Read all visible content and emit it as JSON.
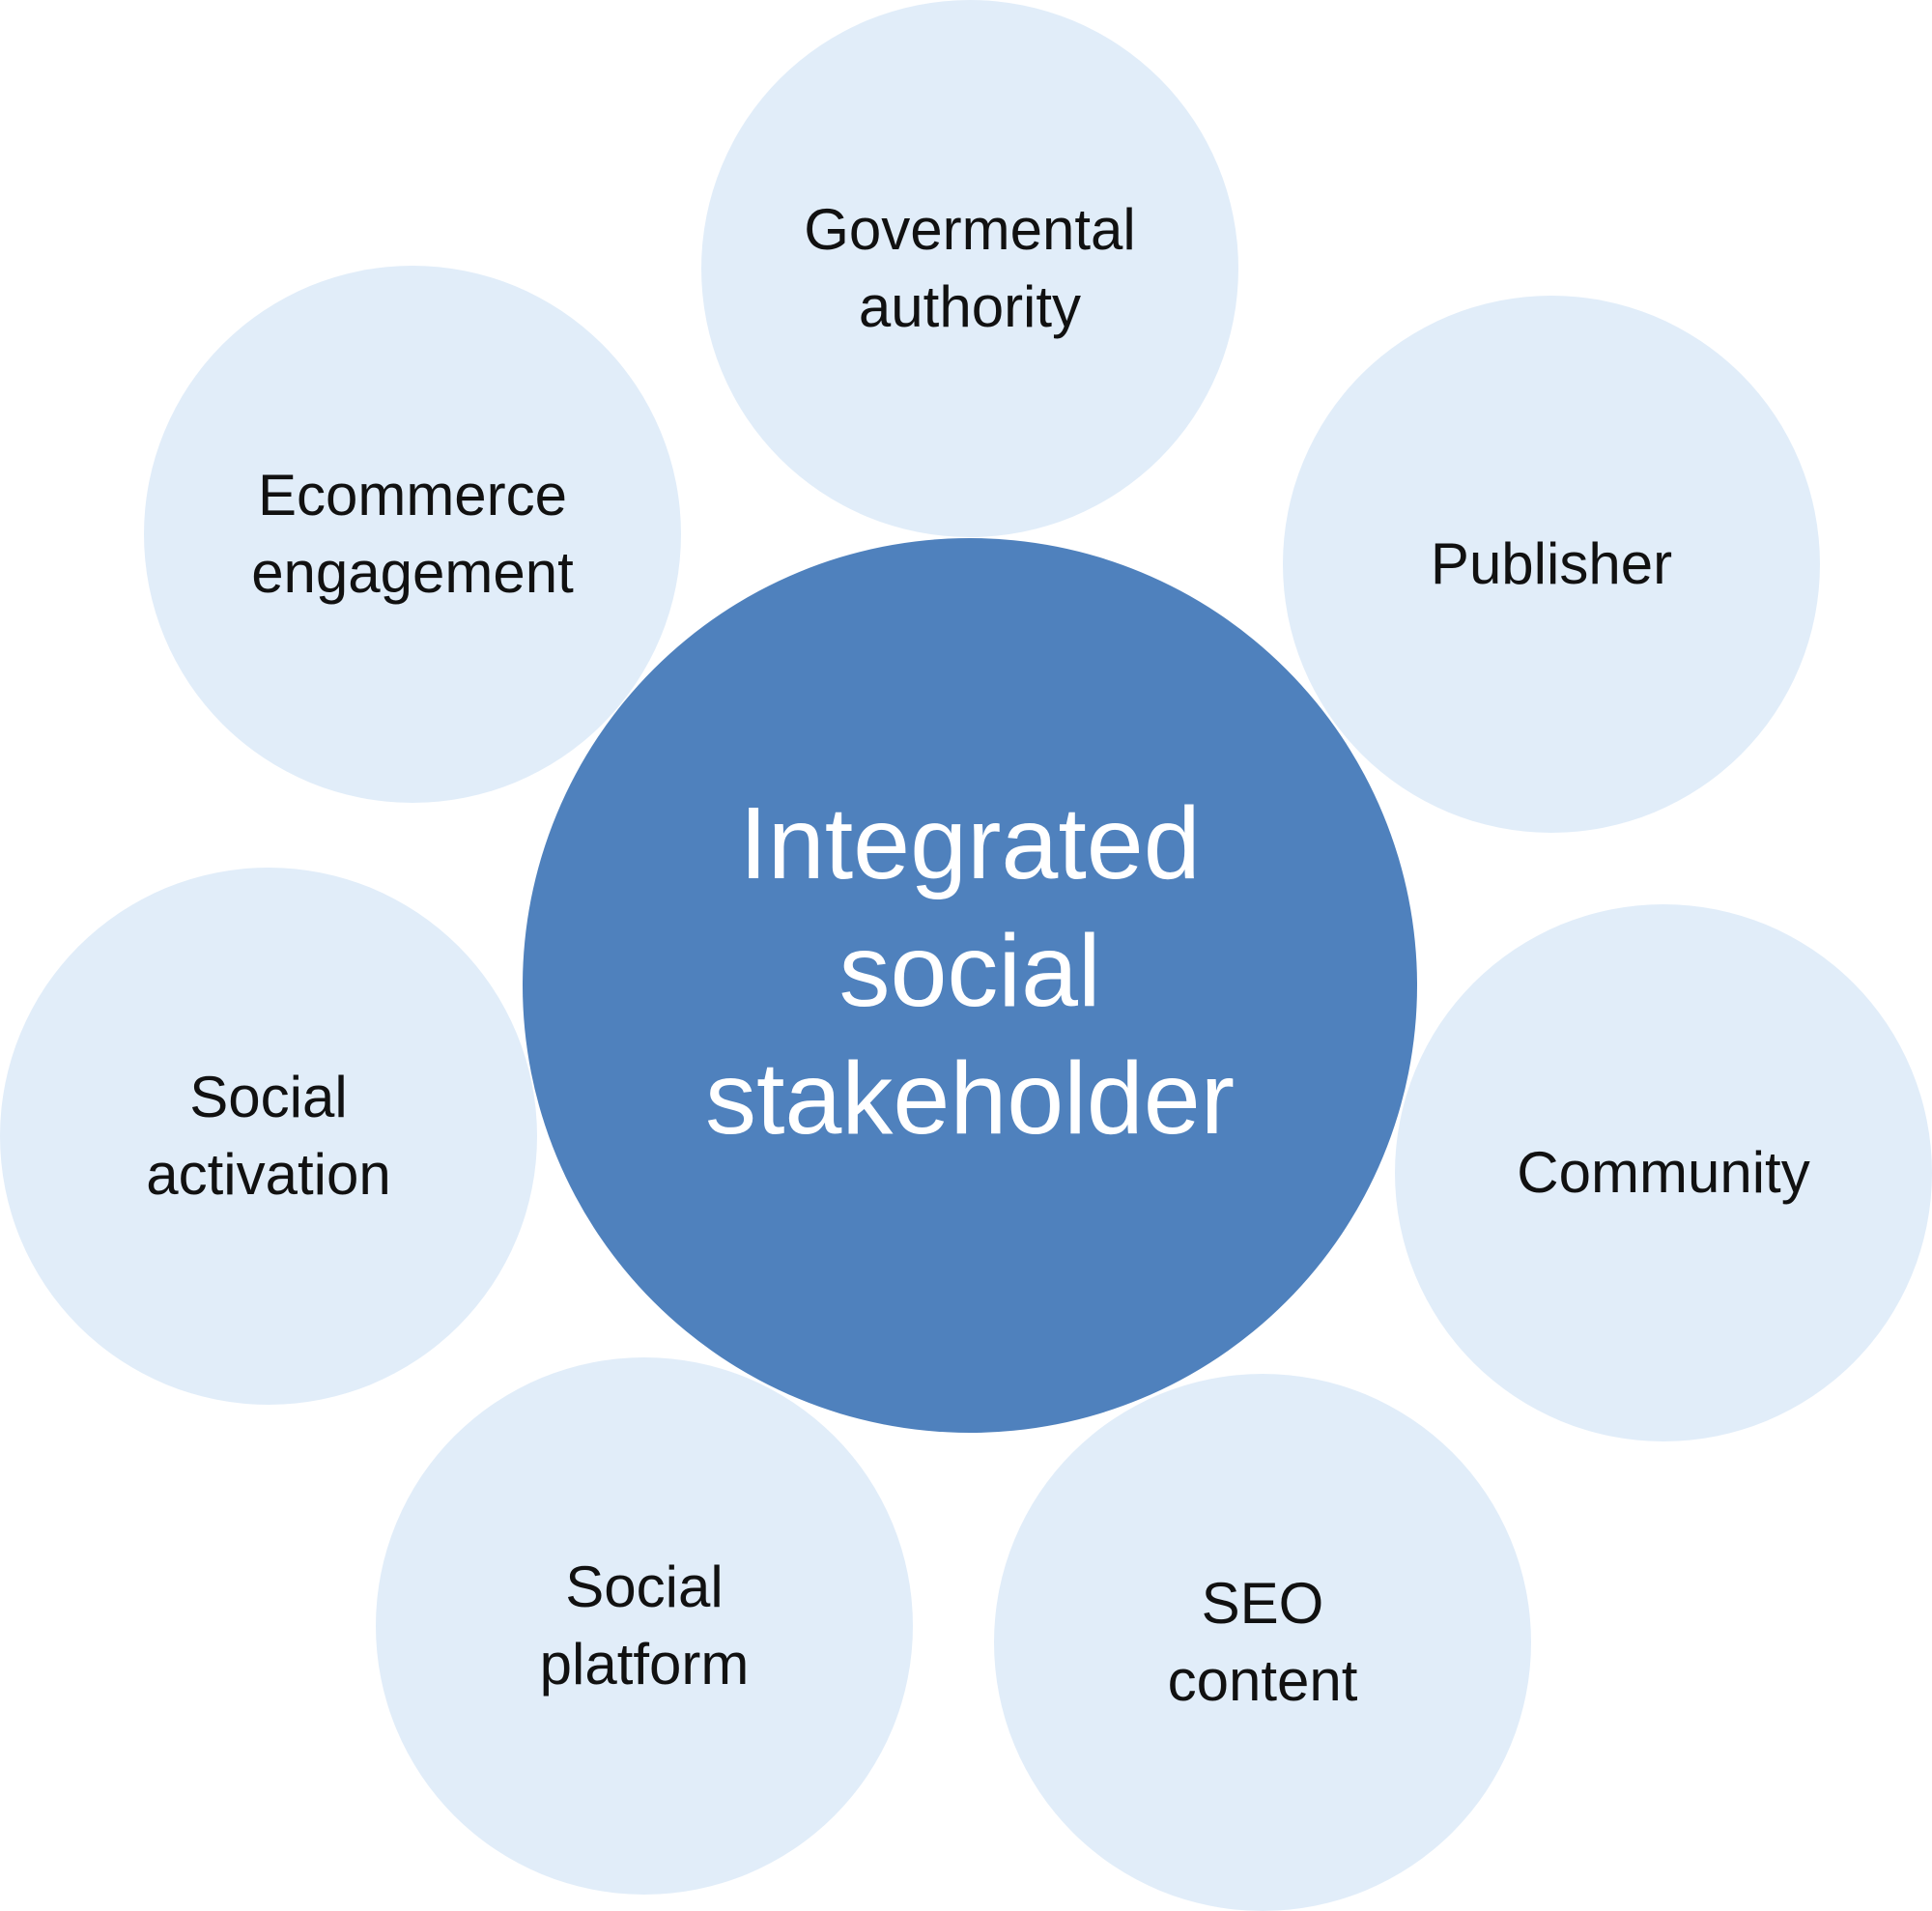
{
  "diagram": {
    "center": {
      "lines": [
        "Integrated",
        "social",
        "stakeholder"
      ]
    },
    "nodes": {
      "governmental": {
        "lines": [
          "Govermental",
          "authority"
        ]
      },
      "ecommerce": {
        "lines": [
          "Ecommerce",
          "engagement"
        ]
      },
      "publisher": {
        "lines": [
          "Publisher"
        ]
      },
      "social_activation": {
        "lines": [
          "Social",
          "activation"
        ]
      },
      "community": {
        "lines": [
          "Community"
        ]
      },
      "social_platform": {
        "lines": [
          "Social",
          "platform"
        ]
      },
      "seo_content": {
        "lines": [
          "SEO",
          "content"
        ]
      }
    },
    "colors": {
      "outer_fill": "#e1edf9",
      "center_fill": "#4f81bd",
      "outer_text": "#111111",
      "center_text": "#ffffff"
    }
  }
}
